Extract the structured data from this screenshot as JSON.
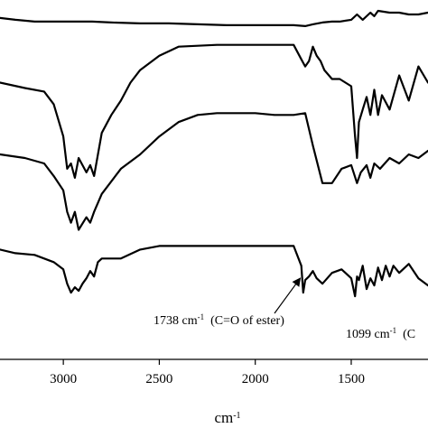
{
  "chart_data": {
    "type": "line",
    "title": "",
    "xlabel": "cm",
    "xlabel_superscript": "-1",
    "ylabel": "",
    "x_reversed": true,
    "xlim": [
      3330,
      1100
    ],
    "x_ticks": [
      "3000",
      "2500",
      "2000",
      "1500"
    ],
    "grid": false,
    "series": [
      {
        "x": [
          3330,
          3250,
          3150,
          3050,
          2950,
          2850,
          2750,
          2600,
          2450,
          2300,
          2150,
          2000,
          1900,
          1800,
          1740,
          1700,
          1650,
          1600,
          1560,
          1500,
          1470,
          1440,
          1400,
          1380,
          1360,
          1300,
          1250,
          1200,
          1150,
          1100
        ],
        "values": [
          -4,
          -5,
          -6,
          -6,
          -6,
          -6,
          -6.5,
          -7,
          -7,
          -7.5,
          -8,
          -8,
          -8,
          -8,
          -8.5,
          -7.5,
          -6.5,
          -6,
          -6,
          -5,
          -2,
          -5,
          -1,
          -3,
          0,
          -1,
          -1,
          -2,
          -2,
          -1
        ]
      },
      {
        "x": [
          3330,
          3200,
          3100,
          3050,
          3000,
          2980,
          2960,
          2940,
          2920,
          2880,
          2860,
          2840,
          2800,
          2750,
          2700,
          2650,
          2600,
          2500,
          2400,
          2200,
          2000,
          1900,
          1800,
          1760,
          1740,
          1720,
          1700,
          1680,
          1660,
          1640,
          1600,
          1560,
          1500,
          1480,
          1470,
          1460,
          1440,
          1420,
          1400,
          1380,
          1360,
          1340,
          1300,
          1250,
          1200,
          1150,
          1100
        ],
        "values": [
          -40,
          -43,
          -45,
          -52,
          -70,
          -88,
          -85,
          -93,
          -82,
          -90,
          -86,
          -92,
          -68,
          -58,
          -50,
          -40,
          -33,
          -25,
          -20,
          -19,
          -19,
          -19,
          -19,
          -27,
          -31,
          -28,
          -20,
          -25,
          -28,
          -33,
          -38,
          -38,
          -42,
          -70,
          -82,
          -62,
          -55,
          -48,
          -58,
          -44,
          -58,
          -47,
          -55,
          -36,
          -50,
          -31,
          -40
        ]
      },
      {
        "x": [
          3330,
          3200,
          3100,
          3050,
          3000,
          2980,
          2960,
          2940,
          2920,
          2880,
          2860,
          2840,
          2800,
          2700,
          2600,
          2500,
          2400,
          2300,
          2200,
          2100,
          2000,
          1900,
          1800,
          1740,
          1700,
          1650,
          1600,
          1550,
          1500,
          1470,
          1450,
          1420,
          1400,
          1380,
          1350,
          1300,
          1250,
          1200,
          1150,
          1100
        ],
        "values": [
          -80,
          -82,
          -85,
          -92,
          -100,
          -112,
          -118,
          -112,
          -122,
          -115,
          -118,
          -112,
          -102,
          -88,
          -80,
          -70,
          -62,
          -58,
          -57,
          -57,
          -57,
          -58,
          -58,
          -57,
          -75,
          -96,
          -96,
          -88,
          -86,
          -96,
          -90,
          -86,
          -93,
          -85,
          -88,
          -82,
          -85,
          -80,
          -82,
          -78
        ]
      },
      {
        "x": [
          3330,
          3250,
          3150,
          3100,
          3050,
          3000,
          2980,
          2960,
          2940,
          2920,
          2900,
          2880,
          2860,
          2840,
          2820,
          2800,
          2750,
          2700,
          2600,
          2500,
          2400,
          2300,
          2200,
          2100,
          2000,
          1900,
          1800,
          1760,
          1750,
          1740,
          1720,
          1700,
          1680,
          1650,
          1600,
          1550,
          1500,
          1480,
          1470,
          1460,
          1440,
          1420,
          1400,
          1380,
          1360,
          1340,
          1320,
          1300,
          1280,
          1250,
          1200,
          1150,
          1100
        ],
        "values": [
          -133,
          -135,
          -136,
          -138,
          -140,
          -144,
          -152,
          -157,
          -154,
          -156,
          -152,
          -149,
          -145,
          -148,
          -140,
          -138,
          -138,
          -138,
          -133,
          -131,
          -131,
          -131,
          -131,
          -131,
          -131,
          -131,
          -131,
          -142,
          -157,
          -150,
          -148,
          -145,
          -149,
          -152,
          -146,
          -144,
          -149,
          -159,
          -148,
          -150,
          -142,
          -155,
          -149,
          -153,
          -143,
          -150,
          -142,
          -148,
          -142,
          -146,
          -141,
          -149,
          -153
        ]
      }
    ],
    "ylim": [
      -165,
      2
    ],
    "annotations": [
      {
        "text": "1738 cm",
        "sup": "-1",
        "tail": "  (C=O of ester)",
        "target_x": 1738,
        "target_y": -148
      },
      {
        "text": "1099 cm",
        "sup": "-1",
        "tail": "  (C",
        "target_x": null,
        "target_y": null
      }
    ]
  }
}
